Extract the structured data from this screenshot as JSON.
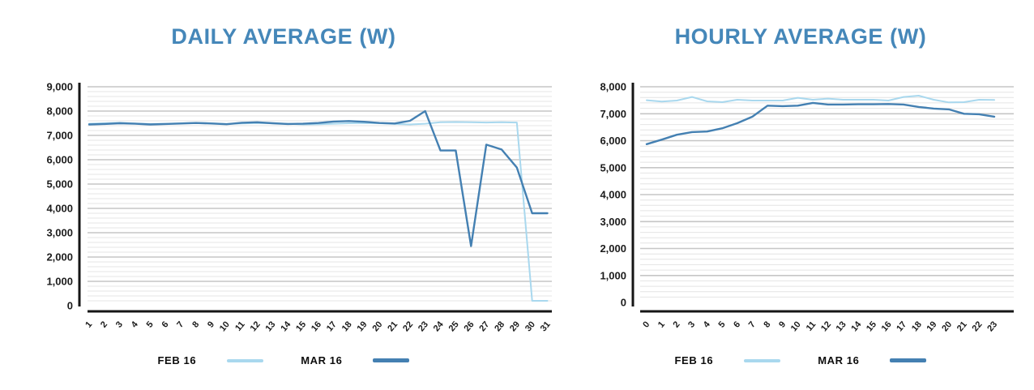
{
  "accent_colors": {
    "title_blue": "#4587b9",
    "feb_line": "#a9d8ee",
    "mar_line": "#4480b2",
    "grid_minor": "#e4e4e4",
    "grid_major": "#c6c6c6",
    "axis_black": "#161616"
  },
  "chart_data": [
    {
      "type": "line",
      "title": "DAILY AVERAGE (W)",
      "xlabel": "",
      "ylabel": "",
      "x": [
        "1",
        "2",
        "3",
        "4",
        "5",
        "6",
        "7",
        "8",
        "9",
        "10",
        "11",
        "12",
        "13",
        "14",
        "15",
        "16",
        "17",
        "18",
        "19",
        "20",
        "21",
        "22",
        "23",
        "24",
        "25",
        "26",
        "27",
        "28",
        "29",
        "30",
        "31"
      ],
      "ylim": [
        0,
        9000
      ],
      "ytick_step": 1000,
      "minor_step": 200,
      "grid": true,
      "legend_position": "bottom",
      "series": [
        {
          "name": "FEB 16",
          "color": "#a9d8ee",
          "values": [
            7480,
            7500,
            7520,
            7490,
            7470,
            7480,
            7500,
            7520,
            7500,
            7470,
            7490,
            7510,
            7500,
            7480,
            7450,
            7460,
            7480,
            7500,
            7510,
            7500,
            7470,
            7450,
            7480,
            7540,
            7550,
            7540,
            7530,
            7540,
            7530,
            200,
            200
          ]
        },
        {
          "name": "MAR 16",
          "color": "#4480b2",
          "values": [
            7450,
            7470,
            7500,
            7480,
            7450,
            7470,
            7490,
            7510,
            7490,
            7460,
            7520,
            7540,
            7500,
            7470,
            7480,
            7510,
            7570,
            7590,
            7560,
            7510,
            7490,
            7600,
            8000,
            6380,
            6380,
            2450,
            6620,
            6420,
            5680,
            3800,
            3800
          ]
        }
      ]
    },
    {
      "type": "line",
      "title": "HOURLY AVERAGE (W)",
      "xlabel": "",
      "ylabel": "",
      "x": [
        "0",
        "1",
        "2",
        "3",
        "4",
        "5",
        "6",
        "7",
        "8",
        "9",
        "10",
        "11",
        "12",
        "13",
        "14",
        "15",
        "16",
        "17",
        "18",
        "19",
        "20",
        "21",
        "22",
        "23"
      ],
      "ylim": [
        0,
        8000
      ],
      "ytick_step": 1000,
      "minor_step": 200,
      "grid": true,
      "legend_position": "bottom",
      "series": [
        {
          "name": "FEB 16",
          "color": "#a9d8ee",
          "values": [
            7500,
            7450,
            7490,
            7620,
            7460,
            7430,
            7520,
            7490,
            7490,
            7490,
            7590,
            7520,
            7560,
            7520,
            7520,
            7520,
            7490,
            7620,
            7670,
            7520,
            7420,
            7430,
            7520,
            7510
          ]
        },
        {
          "name": "MAR 16",
          "color": "#4480b2",
          "values": [
            5870,
            6040,
            6220,
            6320,
            6340,
            6460,
            6650,
            6890,
            7300,
            7280,
            7300,
            7400,
            7340,
            7340,
            7350,
            7350,
            7360,
            7340,
            7250,
            7190,
            7160,
            7000,
            6980,
            6890
          ]
        }
      ]
    }
  ]
}
